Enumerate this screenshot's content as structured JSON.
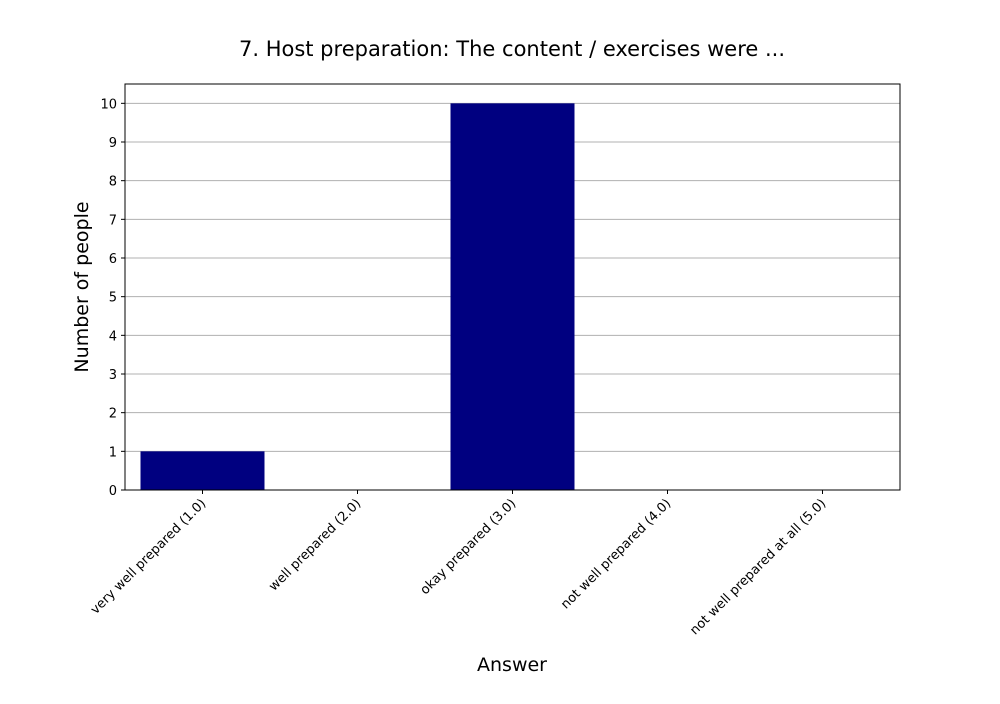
{
  "chart_data": {
    "type": "bar",
    "title": "7. Host preparation: The content / exercises were ...",
    "xlabel": "Answer",
    "ylabel": "Number of people",
    "categories": [
      "very well prepared (1.0)",
      "well prepared (2.0)",
      "okay prepared (3.0)",
      "not well prepared (4.0)",
      "not well prepared at all (5.0)"
    ],
    "values": [
      1,
      0,
      10,
      0,
      0
    ],
    "ylim": [
      0,
      10.5
    ],
    "yticks": [
      "0",
      "1",
      "2",
      "3",
      "4",
      "5",
      "6",
      "7",
      "8",
      "9",
      "10"
    ],
    "grid": "y",
    "legend": "none",
    "bar_color": "#000080",
    "grid_color": "#b0b0b0"
  }
}
